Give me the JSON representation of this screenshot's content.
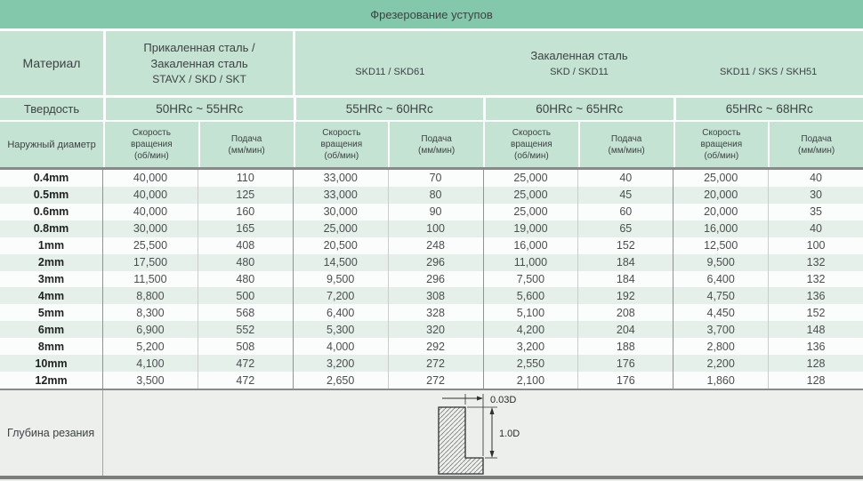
{
  "page": {
    "title": "Фрезерование уступов"
  },
  "header": {
    "material_label": "Материал",
    "group1": {
      "line1": "Прикаленная сталь /",
      "line2": "Закаленная сталь",
      "line3": "STAVX / SKD / SKT"
    },
    "hardened_steel_title": "Закаленная сталь",
    "grade_labels": [
      "SKD11 / SKD61",
      "SKD / SKD11",
      "SKD11 / SKS / SKH51"
    ],
    "hardness_label": "Твердость",
    "hardness_ranges": [
      "50HRc ~ 55HRc",
      "55HRc ~ 60HRc",
      "60HRc ~ 65HRc",
      "65HRc ~ 68HRc"
    ],
    "diameter_label": "Наружный диаметр",
    "speed_header": "Скорость\nвращения\n(об/мин)",
    "feed_header": "Подача\n(мм/мин)"
  },
  "table": {
    "columns": [
      "Скорость вращения (об/мин)",
      "Подача (мм/мин)",
      "Скорость вращения (об/мин)",
      "Подача (мм/мин)",
      "Скорость вращения (об/мин)",
      "Подача (мм/мин)",
      "Скорость вращения (об/мин)",
      "Подача (мм/мин)"
    ],
    "rows": [
      {
        "d": "0.4mm",
        "v": [
          "40,000",
          "110",
          "33,000",
          "70",
          "25,000",
          "40",
          "25,000",
          "40"
        ]
      },
      {
        "d": "0.5mm",
        "v": [
          "40,000",
          "125",
          "33,000",
          "80",
          "25,000",
          "45",
          "20,000",
          "30"
        ]
      },
      {
        "d": "0.6mm",
        "v": [
          "40,000",
          "160",
          "30,000",
          "90",
          "25,000",
          "60",
          "20,000",
          "35"
        ]
      },
      {
        "d": "0.8mm",
        "v": [
          "30,000",
          "165",
          "25,000",
          "100",
          "19,000",
          "65",
          "16,000",
          "40"
        ]
      },
      {
        "d": "1mm",
        "v": [
          "25,500",
          "408",
          "20,500",
          "248",
          "16,000",
          "152",
          "12,500",
          "100"
        ]
      },
      {
        "d": "2mm",
        "v": [
          "17,500",
          "480",
          "14,500",
          "296",
          "11,000",
          "184",
          "9,500",
          "132"
        ]
      },
      {
        "d": "3mm",
        "v": [
          "11,500",
          "480",
          "9,500",
          "296",
          "7,500",
          "184",
          "6,400",
          "132"
        ]
      },
      {
        "d": "4mm",
        "v": [
          "8,800",
          "500",
          "7,200",
          "308",
          "5,600",
          "192",
          "4,750",
          "136"
        ]
      },
      {
        "d": "5mm",
        "v": [
          "8,300",
          "568",
          "6,400",
          "328",
          "5,100",
          "208",
          "4,450",
          "152"
        ]
      },
      {
        "d": "6mm",
        "v": [
          "6,900",
          "552",
          "5,300",
          "320",
          "4,200",
          "204",
          "3,700",
          "148"
        ]
      },
      {
        "d": "8mm",
        "v": [
          "5,200",
          "508",
          "4,000",
          "292",
          "3,200",
          "188",
          "2,800",
          "136"
        ]
      },
      {
        "d": "10mm",
        "v": [
          "4,100",
          "472",
          "3,200",
          "272",
          "2,550",
          "176",
          "2,200",
          "128"
        ]
      },
      {
        "d": "12mm",
        "v": [
          "3,500",
          "472",
          "2,650",
          "272",
          "2,100",
          "176",
          "1,860",
          "128"
        ]
      }
    ]
  },
  "footer": {
    "depth_label": "Глубина резания",
    "dim_width": "0.03D",
    "dim_depth": "1.0D"
  },
  "colors": {
    "title_green": "#83c8aa",
    "header_green": "#c5e3d3",
    "stripe_green": "#e6f0ea",
    "row_white": "#fbfdfc",
    "footer_gray": "#edefec",
    "divider_gray": "#898b8a",
    "text_dark": "#3d4245"
  }
}
